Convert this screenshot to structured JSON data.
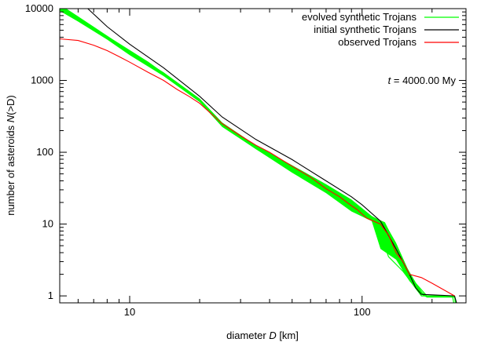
{
  "chart_data": {
    "type": "line",
    "xlabel_prefix": "diameter ",
    "xlabel_var": "D",
    "xlabel_suffix": " [km]",
    "ylabel_prefix": "number of asteroids ",
    "ylabel_var": "N",
    "ylabel_suffix": "(>D)",
    "x_scale": "log",
    "y_scale": "log",
    "xlim": [
      5,
      280
    ],
    "ylim": [
      0.8,
      10000
    ],
    "x_ticks": [
      10,
      100
    ],
    "x_tick_labels": [
      "10",
      "100"
    ],
    "y_ticks": [
      1,
      10,
      100,
      1000,
      10000
    ],
    "y_tick_labels": [
      "1",
      "10",
      "100",
      "1000",
      "10000"
    ],
    "grid": false,
    "legend_position": "top-right",
    "annotation": {
      "var": "t",
      "text": " = 4000.00 My"
    },
    "colors": {
      "evolved": "#00ff00",
      "initial": "#000000",
      "observed": "#ff0000"
    },
    "series": [
      {
        "name": "evolved synthetic Trojans",
        "color": "#00ff00",
        "band": true,
        "upper": [
          [
            5,
            11500
          ],
          [
            6,
            7800
          ],
          [
            8,
            4200
          ],
          [
            10,
            2550
          ],
          [
            14,
            1300
          ],
          [
            20,
            560
          ],
          [
            25,
            260
          ],
          [
            35,
            125
          ],
          [
            50,
            66
          ],
          [
            70,
            36
          ],
          [
            90,
            22
          ],
          [
            110,
            13
          ],
          [
            125,
            10.5
          ],
          [
            140,
            5.5
          ],
          [
            160,
            2.1
          ],
          [
            180,
            1.15
          ],
          [
            190,
            1
          ],
          [
            250,
            1
          ],
          [
            255,
            0.8
          ]
        ],
        "lower": [
          [
            5,
            9300
          ],
          [
            6,
            6600
          ],
          [
            8,
            3700
          ],
          [
            10,
            2250
          ],
          [
            14,
            1150
          ],
          [
            20,
            500
          ],
          [
            25,
            225
          ],
          [
            35,
            110
          ],
          [
            50,
            52
          ],
          [
            70,
            27
          ],
          [
            90,
            15
          ],
          [
            110,
            11
          ],
          [
            120,
            4.5
          ],
          [
            140,
            3.2
          ],
          [
            160,
            1.6
          ],
          [
            180,
            1.05
          ],
          [
            190,
            0.95
          ],
          [
            250,
            0.95
          ],
          [
            255,
            0.8
          ]
        ],
        "curves": [
          [
            [
              5,
              10500
            ],
            [
              8,
              4000
            ],
            [
              12,
              1750
            ],
            [
              20,
              530
            ],
            [
              25,
              240
            ],
            [
              35,
              118
            ],
            [
              50,
              58
            ],
            [
              70,
              31
            ],
            [
              90,
              18
            ],
            [
              110,
              12
            ],
            [
              125,
              10
            ],
            [
              135,
              6
            ],
            [
              150,
              3
            ],
            [
              170,
              1.5
            ],
            [
              190,
              1
            ],
            [
              250,
              1
            ],
            [
              252,
              0.8
            ]
          ],
          [
            [
              5,
              10200
            ],
            [
              8,
              3900
            ],
            [
              12,
              1700
            ],
            [
              20,
              520
            ],
            [
              25,
              235
            ],
            [
              35,
              112
            ],
            [
              50,
              55
            ],
            [
              70,
              28
            ],
            [
              90,
              16
            ],
            [
              110,
              11.5
            ],
            [
              120,
              7
            ],
            [
              130,
              3.5
            ],
            [
              150,
              2.2
            ],
            [
              180,
              1
            ],
            [
              245,
              1
            ],
            [
              248,
              0.8
            ]
          ],
          [
            [
              5,
              10800
            ],
            [
              8,
              4100
            ],
            [
              12,
              1800
            ],
            [
              20,
              545
            ],
            [
              25,
              245
            ],
            [
              35,
              120
            ],
            [
              50,
              60
            ],
            [
              70,
              33
            ],
            [
              90,
              20
            ],
            [
              110,
              12.5
            ],
            [
              125,
              10.5
            ],
            [
              140,
              5
            ],
            [
              160,
              2
            ],
            [
              185,
              1
            ],
            [
              250,
              1
            ],
            [
              254,
              0.8
            ]
          ]
        ]
      },
      {
        "name": "initial synthetic Trojans",
        "color": "#000000",
        "points": [
          [
            6.6,
            10000
          ],
          [
            8,
            5600
          ],
          [
            10,
            3200
          ],
          [
            14,
            1500
          ],
          [
            20,
            600
          ],
          [
            25,
            310
          ],
          [
            35,
            150
          ],
          [
            50,
            79
          ],
          [
            70,
            40
          ],
          [
            90,
            24
          ],
          [
            100,
            18.5
          ],
          [
            120,
            11
          ],
          [
            140,
            4.5
          ],
          [
            160,
            2
          ],
          [
            170,
            1.3
          ],
          [
            180,
            1.05
          ],
          [
            250,
            1
          ],
          [
            255,
            0.8
          ]
        ]
      },
      {
        "name": "observed Trojans",
        "color": "#ff0000",
        "points": [
          [
            5,
            3800
          ],
          [
            6,
            3600
          ],
          [
            7,
            3100
          ],
          [
            8,
            2600
          ],
          [
            9,
            2150
          ],
          [
            10,
            1800
          ],
          [
            12,
            1300
          ],
          [
            14,
            1000
          ],
          [
            16,
            750
          ],
          [
            18,
            600
          ],
          [
            20,
            480
          ],
          [
            25,
            250
          ],
          [
            30,
            170
          ],
          [
            35,
            125
          ],
          [
            40,
            100
          ],
          [
            50,
            64
          ],
          [
            60,
            45
          ],
          [
            70,
            31
          ],
          [
            80,
            24
          ],
          [
            90,
            18
          ],
          [
            95,
            16
          ],
          [
            105,
            12
          ],
          [
            120,
            10
          ],
          [
            130,
            7
          ],
          [
            140,
            4
          ],
          [
            150,
            3
          ],
          [
            160,
            2
          ],
          [
            180,
            1.8
          ],
          [
            200,
            1.5
          ],
          [
            250,
            1
          ]
        ]
      }
    ]
  }
}
